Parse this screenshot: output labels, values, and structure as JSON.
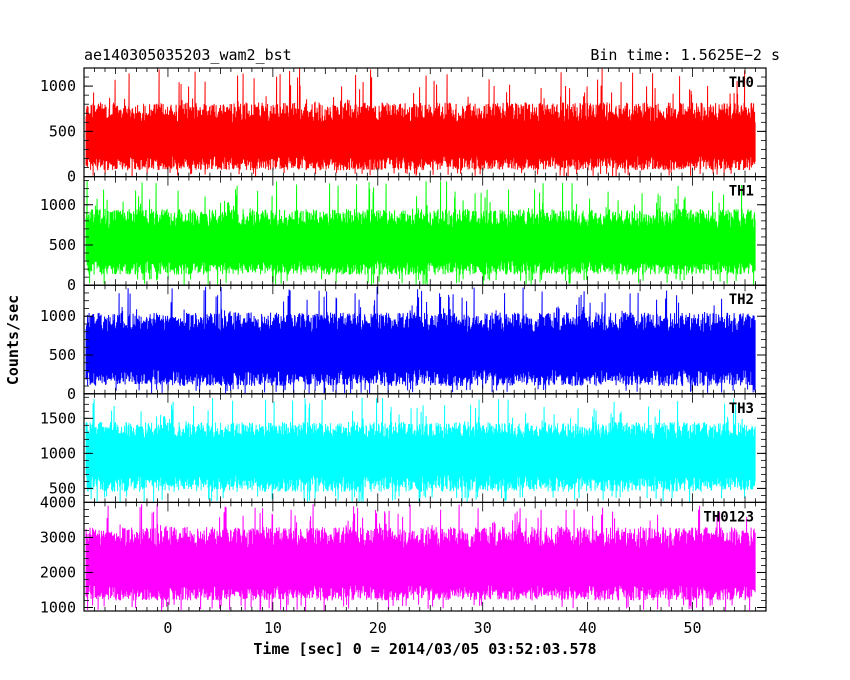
{
  "chart_data": {
    "type": "line",
    "title_left": "ae140305035203_wam2_bst",
    "title_right": "Bin time: 1.5625E−2 s",
    "xlabel": "Time [sec] 0 = 2014/03/05 03:52:03.578",
    "ylabel": "Counts/sec",
    "xlim": [
      -8,
      57
    ],
    "x_ticks": [
      0,
      10,
      20,
      30,
      40,
      50
    ],
    "data_x_range": [
      -7.8,
      56.0
    ],
    "bin_time_s": 0.015625,
    "grid": false,
    "legend": "none",
    "panels": [
      {
        "name": "TH0",
        "color": "#ff0000",
        "ylim": [
          0,
          1200
        ],
        "y_ticks": [
          0,
          500,
          1000
        ],
        "baseline": 420,
        "band_low": 70,
        "band_high": 820,
        "peak_max": 1200
      },
      {
        "name": "TH1",
        "color": "#00ff00",
        "ylim": [
          0,
          1350
        ],
        "y_ticks": [
          0,
          500,
          1000
        ],
        "baseline": 520,
        "band_low": 130,
        "band_high": 950,
        "peak_max": 1300
      },
      {
        "name": "TH2",
        "color": "#0000ff",
        "ylim": [
          0,
          1400
        ],
        "y_ticks": [
          0,
          500,
          1000
        ],
        "baseline": 580,
        "band_low": 100,
        "band_high": 1050,
        "peak_max": 1380
      },
      {
        "name": "TH3",
        "color": "#00ffff",
        "ylim": [
          300,
          1850
        ],
        "y_ticks": [
          500,
          1000,
          1500
        ],
        "baseline": 1000,
        "band_low": 450,
        "band_high": 1450,
        "peak_max": 1800
      },
      {
        "name": "TH0123",
        "color": "#ff00ff",
        "ylim": [
          900,
          4000
        ],
        "y_ticks": [
          1000,
          2000,
          3000,
          4000
        ],
        "baseline": 2200,
        "band_low": 1200,
        "band_high": 3300,
        "peak_max": 3950
      }
    ]
  }
}
